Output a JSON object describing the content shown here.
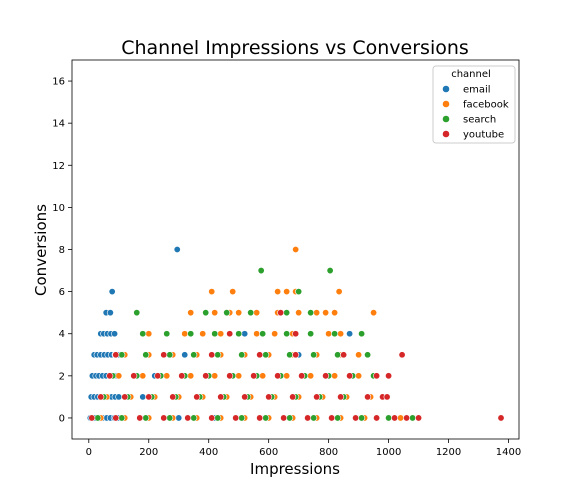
{
  "chart_data": {
    "type": "scatter",
    "title": "Channel Impressions vs Conversions",
    "xlabel": "Impressions",
    "ylabel": "Conversions",
    "xlim": [
      -56,
      1435
    ],
    "ylim": [
      -1,
      17
    ],
    "xticks": [
      0,
      200,
      400,
      600,
      800,
      1000,
      1200,
      1400
    ],
    "yticks": [
      0,
      2,
      4,
      6,
      8,
      10,
      12,
      14,
      16
    ],
    "legend": {
      "title": "channel",
      "placement": "top-right"
    },
    "series": [
      {
        "name": "email",
        "color": "#1f77b4",
        "points": [
          [
            5,
            0
          ],
          [
            14,
            0
          ],
          [
            22,
            0
          ],
          [
            35,
            0
          ],
          [
            47,
            0
          ],
          [
            60,
            0
          ],
          [
            72,
            0
          ],
          [
            85,
            0
          ],
          [
            98,
            0
          ],
          [
            115,
            0
          ],
          [
            8,
            1
          ],
          [
            18,
            1
          ],
          [
            30,
            1
          ],
          [
            40,
            1
          ],
          [
            52,
            1
          ],
          [
            64,
            1
          ],
          [
            76,
            1
          ],
          [
            88,
            1
          ],
          [
            100,
            1
          ],
          [
            12,
            2
          ],
          [
            24,
            2
          ],
          [
            34,
            2
          ],
          [
            46,
            2
          ],
          [
            58,
            2
          ],
          [
            70,
            2
          ],
          [
            82,
            2
          ],
          [
            94,
            2
          ],
          [
            18,
            3
          ],
          [
            28,
            3
          ],
          [
            40,
            3
          ],
          [
            52,
            3
          ],
          [
            64,
            3
          ],
          [
            76,
            3
          ],
          [
            88,
            3
          ],
          [
            100,
            3
          ],
          [
            40,
            4
          ],
          [
            50,
            4
          ],
          [
            62,
            4
          ],
          [
            74,
            4
          ],
          [
            86,
            4
          ],
          [
            58,
            5
          ],
          [
            72,
            5
          ],
          [
            78,
            6
          ],
          [
            295,
            8
          ],
          [
            300,
            0
          ],
          [
            350,
            0
          ],
          [
            420,
            0
          ],
          [
            180,
            1
          ],
          [
            220,
            2
          ],
          [
            320,
            3
          ],
          [
            520,
            4
          ],
          [
            460,
            5
          ],
          [
            700,
            3
          ],
          [
            800,
            4
          ],
          [
            870,
            4
          ]
        ]
      },
      {
        "name": "facebook",
        "color": "#ff7f0e",
        "points": [
          [
            40,
            0
          ],
          [
            120,
            0
          ],
          [
            200,
            0
          ],
          [
            280,
            0
          ],
          [
            360,
            0
          ],
          [
            440,
            0
          ],
          [
            520,
            0
          ],
          [
            600,
            0
          ],
          [
            680,
            0
          ],
          [
            760,
            0
          ],
          [
            840,
            0
          ],
          [
            920,
            0
          ],
          [
            1000,
            0
          ],
          [
            1040,
            0
          ],
          [
            1100,
            0
          ],
          [
            60,
            1
          ],
          [
            140,
            1
          ],
          [
            220,
            1
          ],
          [
            300,
            1
          ],
          [
            380,
            1
          ],
          [
            460,
            1
          ],
          [
            540,
            1
          ],
          [
            620,
            1
          ],
          [
            700,
            1
          ],
          [
            780,
            1
          ],
          [
            860,
            1
          ],
          [
            940,
            1
          ],
          [
            100,
            2
          ],
          [
            180,
            2
          ],
          [
            260,
            2
          ],
          [
            340,
            2
          ],
          [
            420,
            2
          ],
          [
            500,
            2
          ],
          [
            580,
            2
          ],
          [
            660,
            2
          ],
          [
            740,
            2
          ],
          [
            820,
            2
          ],
          [
            900,
            2
          ],
          [
            120,
            3
          ],
          [
            200,
            3
          ],
          [
            280,
            3
          ],
          [
            360,
            3
          ],
          [
            440,
            3
          ],
          [
            520,
            3
          ],
          [
            600,
            3
          ],
          [
            680,
            3
          ],
          [
            760,
            3
          ],
          [
            840,
            3
          ],
          [
            900,
            3
          ],
          [
            200,
            4
          ],
          [
            260,
            4
          ],
          [
            320,
            4
          ],
          [
            380,
            4
          ],
          [
            440,
            4
          ],
          [
            500,
            4
          ],
          [
            560,
            4
          ],
          [
            620,
            4
          ],
          [
            680,
            4
          ],
          [
            740,
            4
          ],
          [
            800,
            4
          ],
          [
            840,
            4
          ],
          [
            340,
            5
          ],
          [
            420,
            5
          ],
          [
            470,
            5
          ],
          [
            500,
            5
          ],
          [
            560,
            5
          ],
          [
            630,
            5
          ],
          [
            700,
            5
          ],
          [
            760,
            5
          ],
          [
            790,
            5
          ],
          [
            820,
            5
          ],
          [
            950,
            5
          ],
          [
            410,
            6
          ],
          [
            480,
            6
          ],
          [
            630,
            6
          ],
          [
            660,
            6
          ],
          [
            690,
            6
          ],
          [
            835,
            6
          ],
          [
            690,
            8
          ]
        ]
      },
      {
        "name": "search",
        "color": "#2ca02c",
        "points": [
          [
            30,
            0
          ],
          [
            110,
            0
          ],
          [
            190,
            0
          ],
          [
            270,
            0
          ],
          [
            350,
            0
          ],
          [
            430,
            0
          ],
          [
            510,
            0
          ],
          [
            590,
            0
          ],
          [
            670,
            0
          ],
          [
            750,
            0
          ],
          [
            830,
            0
          ],
          [
            910,
            0
          ],
          [
            1000,
            0
          ],
          [
            1080,
            0
          ],
          [
            50,
            1
          ],
          [
            130,
            1
          ],
          [
            210,
            1
          ],
          [
            290,
            1
          ],
          [
            370,
            1
          ],
          [
            450,
            1
          ],
          [
            530,
            1
          ],
          [
            610,
            1
          ],
          [
            690,
            1
          ],
          [
            770,
            1
          ],
          [
            850,
            1
          ],
          [
            930,
            1
          ],
          [
            80,
            2
          ],
          [
            160,
            2
          ],
          [
            240,
            2
          ],
          [
            320,
            2
          ],
          [
            400,
            2
          ],
          [
            480,
            2
          ],
          [
            560,
            2
          ],
          [
            640,
            2
          ],
          [
            720,
            2
          ],
          [
            800,
            2
          ],
          [
            880,
            2
          ],
          [
            950,
            2
          ],
          [
            110,
            3
          ],
          [
            190,
            3
          ],
          [
            270,
            3
          ],
          [
            350,
            3
          ],
          [
            430,
            3
          ],
          [
            510,
            3
          ],
          [
            590,
            3
          ],
          [
            670,
            3
          ],
          [
            750,
            3
          ],
          [
            830,
            3
          ],
          [
            930,
            3
          ],
          [
            180,
            4
          ],
          [
            260,
            4
          ],
          [
            340,
            4
          ],
          [
            420,
            4
          ],
          [
            500,
            4
          ],
          [
            580,
            4
          ],
          [
            660,
            4
          ],
          [
            740,
            4
          ],
          [
            820,
            4
          ],
          [
            910,
            4
          ],
          [
            160,
            5
          ],
          [
            390,
            5
          ],
          [
            460,
            5
          ],
          [
            540,
            5
          ],
          [
            660,
            5
          ],
          [
            740,
            5
          ],
          [
            700,
            6
          ],
          [
            575,
            7
          ],
          [
            805,
            7
          ]
        ]
      },
      {
        "name": "youtube",
        "color": "#d62728",
        "points": [
          [
            10,
            0
          ],
          [
            90,
            0
          ],
          [
            170,
            0
          ],
          [
            250,
            0
          ],
          [
            330,
            0
          ],
          [
            410,
            0
          ],
          [
            490,
            0
          ],
          [
            570,
            0
          ],
          [
            650,
            0
          ],
          [
            730,
            0
          ],
          [
            810,
            0
          ],
          [
            890,
            0
          ],
          [
            960,
            0
          ],
          [
            1020,
            0
          ],
          [
            1060,
            0
          ],
          [
            1100,
            0
          ],
          [
            1375,
            0
          ],
          [
            40,
            1
          ],
          [
            120,
            1
          ],
          [
            200,
            1
          ],
          [
            280,
            1
          ],
          [
            360,
            1
          ],
          [
            440,
            1
          ],
          [
            520,
            1
          ],
          [
            600,
            1
          ],
          [
            680,
            1
          ],
          [
            760,
            1
          ],
          [
            840,
            1
          ],
          [
            930,
            1
          ],
          [
            980,
            1
          ],
          [
            995,
            1
          ],
          [
            70,
            2
          ],
          [
            150,
            2
          ],
          [
            230,
            2
          ],
          [
            310,
            2
          ],
          [
            390,
            2
          ],
          [
            470,
            2
          ],
          [
            550,
            2
          ],
          [
            630,
            2
          ],
          [
            710,
            2
          ],
          [
            790,
            2
          ],
          [
            870,
            2
          ],
          [
            960,
            2
          ],
          [
            1000,
            2
          ],
          [
            90,
            3
          ],
          [
            250,
            3
          ],
          [
            410,
            3
          ],
          [
            570,
            3
          ],
          [
            690,
            3
          ],
          [
            850,
            3
          ],
          [
            1045,
            3
          ],
          [
            470,
            4
          ],
          [
            690,
            4
          ],
          [
            640,
            5
          ]
        ]
      }
    ]
  }
}
